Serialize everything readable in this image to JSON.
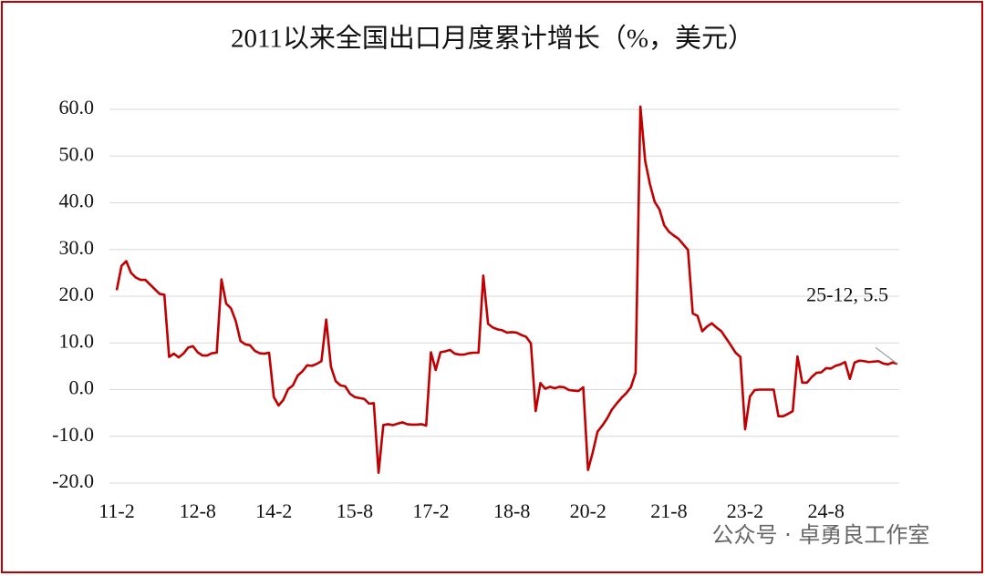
{
  "chart_data": {
    "type": "line",
    "title": "2011以来全国出口月度累计增长（%，美元）",
    "categories": [
      "11-2",
      null,
      null,
      null,
      null,
      null,
      null,
      null,
      null,
      null,
      null,
      null,
      null,
      null,
      null,
      null,
      null,
      "12-8",
      null,
      null,
      null,
      null,
      null,
      null,
      null,
      null,
      null,
      null,
      null,
      null,
      null,
      null,
      null,
      "14-2",
      null,
      null,
      null,
      null,
      null,
      null,
      null,
      null,
      null,
      null,
      null,
      null,
      null,
      null,
      null,
      null,
      "15-8",
      null,
      null,
      null,
      null,
      null,
      null,
      null,
      null,
      null,
      null,
      null,
      null,
      null,
      null,
      null,
      "17-2",
      null,
      null,
      null,
      null,
      null,
      null,
      null,
      null,
      null,
      null,
      null,
      null,
      null,
      null,
      null,
      null,
      "18-8",
      null,
      null,
      null,
      null,
      null,
      null,
      null,
      null,
      null,
      null,
      null,
      null,
      null,
      null,
      null,
      "20-2",
      null,
      null,
      null,
      null,
      null,
      null,
      null,
      null,
      null,
      null,
      null,
      null,
      null,
      null,
      null,
      null,
      "21-8",
      null,
      null,
      null,
      null,
      null,
      null,
      null,
      null,
      null,
      null,
      null,
      null,
      null,
      null,
      null,
      "23-2",
      null,
      null,
      null,
      null,
      null,
      null,
      null,
      null,
      null,
      null,
      null,
      null,
      null,
      null,
      null,
      null,
      "24-8",
      null,
      null,
      null,
      null,
      null,
      null,
      null,
      null,
      null,
      null,
      null,
      null,
      null,
      null,
      null
    ],
    "series": [
      {
        "name": "出口月度累计增长",
        "color": "#c00000",
        "values": [
          21.3,
          26.5,
          27.5,
          25.0,
          24.0,
          23.5,
          23.5,
          22.5,
          21.5,
          20.5,
          20.3,
          7.0,
          7.7,
          6.9,
          7.7,
          9.0,
          9.3,
          8.0,
          7.3,
          7.3,
          7.8,
          7.9,
          23.6,
          18.4,
          17.4,
          14.7,
          10.4,
          9.7,
          9.5,
          8.3,
          7.8,
          7.7,
          7.9,
          -1.6,
          -3.4,
          -2.2,
          0.1,
          0.9,
          3.0,
          3.9,
          5.2,
          5.1,
          5.5,
          6.1,
          15.0,
          4.9,
          1.8,
          0.9,
          0.7,
          -0.9,
          -1.6,
          -1.8,
          -2.0,
          -3.0,
          -2.9,
          -17.8,
          -7.6,
          -7.4,
          -7.6,
          -7.3,
          -7.0,
          -7.4,
          -7.5,
          -7.5,
          -7.4,
          -7.7,
          8.0,
          4.2,
          8.0,
          8.2,
          8.5,
          7.7,
          7.5,
          7.5,
          7.8,
          7.9,
          7.9,
          24.4,
          14.1,
          13.3,
          12.9,
          12.7,
          12.2,
          12.3,
          12.2,
          11.7,
          11.3,
          9.9,
          -4.6,
          1.4,
          0.2,
          0.6,
          0.3,
          0.6,
          0.5,
          -0.1,
          -0.2,
          -0.3,
          0.5,
          -17.2,
          -13.4,
          -9.0,
          -7.7,
          -6.2,
          -4.3,
          -3.0,
          -1.8,
          -0.8,
          0.5,
          3.6,
          60.6,
          49.0,
          44.0,
          40.2,
          38.6,
          35.2,
          33.8,
          33.0,
          32.3,
          31.1,
          29.9,
          16.3,
          15.8,
          12.5,
          13.5,
          14.2,
          13.3,
          12.5,
          11.0,
          9.5,
          7.9,
          7.0,
          -8.5,
          -1.5,
          -0.1,
          0.0,
          0.0,
          0.0,
          0.0,
          -5.7,
          -5.7,
          -5.2,
          -4.6,
          7.1,
          1.5,
          1.5,
          2.7,
          3.6,
          3.7,
          4.6,
          4.5,
          5.1,
          5.4,
          5.9,
          2.3,
          5.8,
          6.2,
          6.1,
          5.9,
          6.0,
          6.1,
          5.6,
          5.4,
          5.8,
          5.5
        ]
      }
    ],
    "ylim": [
      -20,
      60
    ],
    "yticks": [
      {
        "value": -20,
        "label": "-20.0"
      },
      {
        "value": -10,
        "label": "-10.0"
      },
      {
        "value": 0,
        "label": "0.0"
      },
      {
        "value": 10,
        "label": "10.0"
      },
      {
        "value": 20,
        "label": "20.0"
      },
      {
        "value": 30,
        "label": "30.0"
      },
      {
        "value": 40,
        "label": "40.0"
      },
      {
        "value": 50,
        "label": "50.0"
      },
      {
        "value": 60,
        "label": "60.0"
      }
    ],
    "grid": true,
    "annotation": "25-12, 5.5",
    "watermark": "公众号 · 卓勇良工作室"
  }
}
